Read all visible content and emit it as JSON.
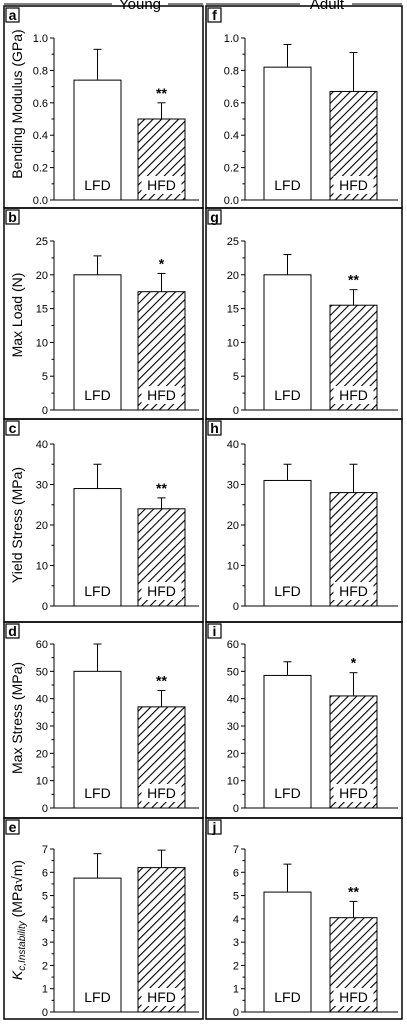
{
  "header": {
    "left": "Young",
    "right": "Adult"
  },
  "bar_labels": {
    "lfd": "LFD",
    "hfd": "HFD"
  },
  "colors": {
    "lfd_fill": "#ffffff",
    "hfd_hatch": "#000000",
    "frame": "#000000"
  },
  "row_ylabels": [
    "Bending Modulus (GPa)",
    "Max Load (N)",
    "Yield Stress (MPa)",
    "Max Stress (MPa)",
    "Kc,Instability (MPa√m)"
  ],
  "chart_data": [
    {
      "panel": "a",
      "type": "bar",
      "group": "Young",
      "ylabel": "Bending Modulus (GPa)",
      "categories": [
        "LFD",
        "HFD"
      ],
      "values": [
        0.74,
        0.5
      ],
      "errors": [
        0.19,
        0.1
      ],
      "significance": [
        "",
        "**"
      ],
      "ylim": [
        0,
        1.0
      ],
      "yticks": [
        0.0,
        0.2,
        0.4,
        0.6,
        0.8,
        1.0
      ],
      "tick_labels": [
        "0.0",
        "0.2",
        "0.4",
        "0.6",
        "0.8",
        "1.0"
      ]
    },
    {
      "panel": "f",
      "type": "bar",
      "group": "Adult",
      "ylabel": "Bending Modulus (GPa)",
      "categories": [
        "LFD",
        "HFD"
      ],
      "values": [
        0.82,
        0.67
      ],
      "errors": [
        0.14,
        0.24
      ],
      "significance": [
        "",
        ""
      ],
      "ylim": [
        0,
        1.0
      ],
      "yticks": [
        0.0,
        0.2,
        0.4,
        0.6,
        0.8,
        1.0
      ],
      "tick_labels": [
        "0.0",
        "0.2",
        "0.4",
        "0.6",
        "0.8",
        "1.0"
      ]
    },
    {
      "panel": "b",
      "type": "bar",
      "group": "Young",
      "ylabel": "Max Load (N)",
      "categories": [
        "LFD",
        "HFD"
      ],
      "values": [
        20.0,
        17.5
      ],
      "errors": [
        2.8,
        2.7
      ],
      "significance": [
        "",
        "*"
      ],
      "ylim": [
        0,
        25
      ],
      "yticks": [
        0,
        5,
        10,
        15,
        20,
        25
      ],
      "tick_labels": [
        "0",
        "5",
        "10",
        "15",
        "20",
        "25"
      ]
    },
    {
      "panel": "g",
      "type": "bar",
      "group": "Adult",
      "ylabel": "Max Load (N)",
      "categories": [
        "LFD",
        "HFD"
      ],
      "values": [
        20.0,
        15.5
      ],
      "errors": [
        3.0,
        2.3
      ],
      "significance": [
        "",
        "**"
      ],
      "ylim": [
        0,
        25
      ],
      "yticks": [
        0,
        5,
        10,
        15,
        20,
        25
      ],
      "tick_labels": [
        "0",
        "5",
        "10",
        "15",
        "20",
        "25"
      ]
    },
    {
      "panel": "c",
      "type": "bar",
      "group": "Young",
      "ylabel": "Yield Stress (MPa)",
      "categories": [
        "LFD",
        "HFD"
      ],
      "values": [
        29.0,
        24.0
      ],
      "errors": [
        6.0,
        2.7
      ],
      "significance": [
        "",
        "**"
      ],
      "ylim": [
        0,
        40
      ],
      "yticks": [
        0,
        10,
        20,
        30,
        40
      ],
      "tick_labels": [
        "0",
        "10",
        "20",
        "30",
        "40"
      ]
    },
    {
      "panel": "h",
      "type": "bar",
      "group": "Adult",
      "ylabel": "Yield Stress (MPa)",
      "categories": [
        "LFD",
        "HFD"
      ],
      "values": [
        31.0,
        28.0
      ],
      "errors": [
        4.0,
        7.0
      ],
      "significance": [
        "",
        ""
      ],
      "ylim": [
        0,
        40
      ],
      "yticks": [
        0,
        10,
        20,
        30,
        40
      ],
      "tick_labels": [
        "0",
        "10",
        "20",
        "30",
        "40"
      ]
    },
    {
      "panel": "d",
      "type": "bar",
      "group": "Young",
      "ylabel": "Max Stress (MPa)",
      "categories": [
        "LFD",
        "HFD"
      ],
      "values": [
        50.0,
        37.0
      ],
      "errors": [
        10.0,
        6.0
      ],
      "significance": [
        "",
        "**"
      ],
      "ylim": [
        0,
        60
      ],
      "yticks": [
        0,
        10,
        20,
        30,
        40,
        50,
        60
      ],
      "tick_labels": [
        "0",
        "10",
        "20",
        "30",
        "40",
        "50",
        "60"
      ]
    },
    {
      "panel": "i",
      "type": "bar",
      "group": "Adult",
      "ylabel": "Max Stress (MPa)",
      "categories": [
        "LFD",
        "HFD"
      ],
      "values": [
        48.5,
        41.0
      ],
      "errors": [
        5.0,
        8.5
      ],
      "significance": [
        "",
        "*"
      ],
      "ylim": [
        0,
        60
      ],
      "yticks": [
        0,
        10,
        20,
        30,
        40,
        50,
        60
      ],
      "tick_labels": [
        "0",
        "10",
        "20",
        "30",
        "40",
        "50",
        "60"
      ]
    },
    {
      "panel": "e",
      "type": "bar",
      "group": "Young",
      "ylabel": "Kc,Instability (MPa√m)",
      "categories": [
        "LFD",
        "HFD"
      ],
      "values": [
        5.75,
        6.2
      ],
      "errors": [
        1.05,
        0.75
      ],
      "significance": [
        "",
        ""
      ],
      "ylim": [
        0,
        7
      ],
      "yticks": [
        0,
        1,
        2,
        3,
        4,
        5,
        6,
        7
      ],
      "tick_labels": [
        "0",
        "1",
        "2",
        "3",
        "4",
        "5",
        "6",
        "7"
      ]
    },
    {
      "panel": "j",
      "type": "bar",
      "group": "Adult",
      "ylabel": "Kc,Instability (MPa√m)",
      "categories": [
        "LFD",
        "HFD"
      ],
      "values": [
        5.15,
        4.05
      ],
      "errors": [
        1.2,
        0.7
      ],
      "significance": [
        "",
        "**"
      ],
      "ylim": [
        0,
        7
      ],
      "yticks": [
        0,
        1,
        2,
        3,
        4,
        5,
        6,
        7
      ],
      "tick_labels": [
        "0",
        "1",
        "2",
        "3",
        "4",
        "5",
        "6",
        "7"
      ]
    }
  ]
}
